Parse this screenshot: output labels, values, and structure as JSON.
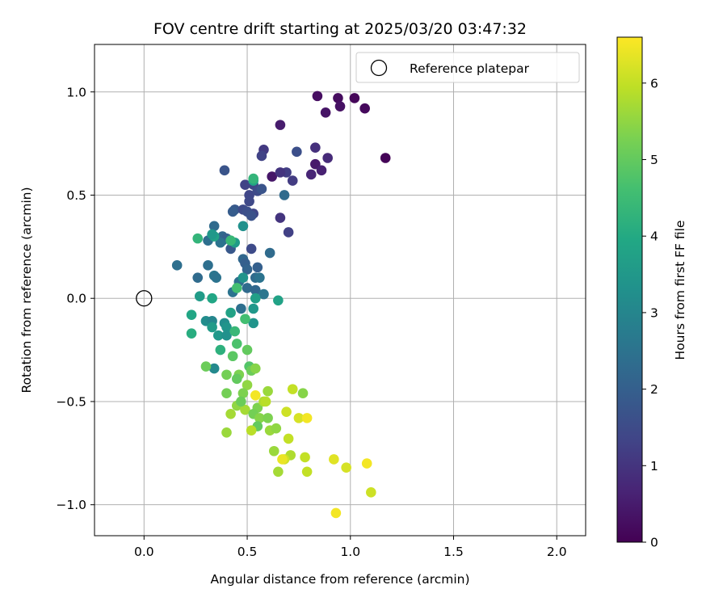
{
  "chart_data": {
    "type": "scatter",
    "title": "FOV centre drift starting at 2025/03/20 03:47:32",
    "xlabel": "Angular distance from reference (arcmin)",
    "ylabel": "Rotation from reference (arcmin)",
    "xlim": [
      -0.24,
      2.14
    ],
    "ylim": [
      -1.15,
      1.23
    ],
    "xticks": [
      0.0,
      0.5,
      1.0,
      1.5,
      2.0
    ],
    "xtick_labels": [
      "0.0",
      "0.5",
      "1.0",
      "1.5",
      "2.0"
    ],
    "yticks": [
      -1.0,
      -0.5,
      0.0,
      0.5,
      1.0
    ],
    "ytick_labels": [
      "−1.0",
      "−0.5",
      "0.0",
      "0.5",
      "1.0"
    ],
    "grid": true,
    "legend": {
      "placement": "top-right",
      "entries": [
        "Reference platepar"
      ]
    },
    "reference_point": {
      "x": 0.0,
      "y": 0.0,
      "label": "Reference platepar"
    },
    "colorbar": {
      "label": "Hours from first FF file",
      "colormap": "viridis",
      "range": [
        0,
        6.6
      ],
      "ticks": [
        0,
        1,
        2,
        3,
        4,
        5,
        6
      ],
      "tick_labels": [
        "0",
        "1",
        "2",
        "3",
        "4",
        "5",
        "6"
      ]
    },
    "points": [
      {
        "x": 1.17,
        "y": 0.68,
        "t": 0.05
      },
      {
        "x": 1.02,
        "y": 0.97,
        "t": 0.1
      },
      {
        "x": 1.07,
        "y": 0.92,
        "t": 0.15
      },
      {
        "x": 0.94,
        "y": 0.97,
        "t": 0.2
      },
      {
        "x": 0.84,
        "y": 0.98,
        "t": 0.25
      },
      {
        "x": 0.95,
        "y": 0.93,
        "t": 0.3
      },
      {
        "x": 0.88,
        "y": 0.9,
        "t": 0.35
      },
      {
        "x": 0.66,
        "y": 0.84,
        "t": 0.5
      },
      {
        "x": 0.83,
        "y": 0.65,
        "t": 0.45
      },
      {
        "x": 0.62,
        "y": 0.59,
        "t": 0.4
      },
      {
        "x": 0.86,
        "y": 0.62,
        "t": 0.6
      },
      {
        "x": 0.89,
        "y": 0.68,
        "t": 0.8
      },
      {
        "x": 0.83,
        "y": 0.73,
        "t": 0.9
      },
      {
        "x": 0.81,
        "y": 0.6,
        "t": 0.7
      },
      {
        "x": 0.58,
        "y": 0.72,
        "t": 1.1
      },
      {
        "x": 0.57,
        "y": 0.69,
        "t": 1.3
      },
      {
        "x": 0.69,
        "y": 0.61,
        "t": 1.2
      },
      {
        "x": 0.66,
        "y": 0.61,
        "t": 1.0
      },
      {
        "x": 0.72,
        "y": 0.57,
        "t": 1.15
      },
      {
        "x": 0.74,
        "y": 0.71,
        "t": 1.6
      },
      {
        "x": 0.66,
        "y": 0.39,
        "t": 1.0
      },
      {
        "x": 0.7,
        "y": 0.32,
        "t": 1.25
      },
      {
        "x": 0.49,
        "y": 0.55,
        "t": 1.3
      },
      {
        "x": 0.53,
        "y": 0.55,
        "t": 1.35
      },
      {
        "x": 0.51,
        "y": 0.5,
        "t": 1.4
      },
      {
        "x": 0.55,
        "y": 0.52,
        "t": 1.5
      },
      {
        "x": 0.57,
        "y": 0.53,
        "t": 1.7
      },
      {
        "x": 0.51,
        "y": 0.47,
        "t": 1.45
      },
      {
        "x": 0.39,
        "y": 0.62,
        "t": 1.7
      },
      {
        "x": 0.44,
        "y": 0.43,
        "t": 1.8
      },
      {
        "x": 0.43,
        "y": 0.42,
        "t": 1.9
      },
      {
        "x": 0.48,
        "y": 0.43,
        "t": 1.5
      },
      {
        "x": 0.53,
        "y": 0.41,
        "t": 1.4
      },
      {
        "x": 0.5,
        "y": 0.42,
        "t": 1.6
      },
      {
        "x": 0.52,
        "y": 0.4,
        "t": 1.65
      },
      {
        "x": 0.68,
        "y": 0.5,
        "t": 2.3
      },
      {
        "x": 0.52,
        "y": 0.24,
        "t": 1.5
      },
      {
        "x": 0.42,
        "y": 0.24,
        "t": 1.8
      },
      {
        "x": 0.34,
        "y": 0.35,
        "t": 2.3
      },
      {
        "x": 0.31,
        "y": 0.28,
        "t": 2.4
      },
      {
        "x": 0.38,
        "y": 0.28,
        "t": 2.1
      },
      {
        "x": 0.38,
        "y": 0.3,
        "t": 2.2
      },
      {
        "x": 0.4,
        "y": 0.29,
        "t": 2.0
      },
      {
        "x": 0.37,
        "y": 0.27,
        "t": 2.5
      },
      {
        "x": 0.61,
        "y": 0.22,
        "t": 2.3
      },
      {
        "x": 0.16,
        "y": 0.16,
        "t": 2.4
      },
      {
        "x": 0.26,
        "y": 0.1,
        "t": 2.3
      },
      {
        "x": 0.31,
        "y": 0.16,
        "t": 2.4
      },
      {
        "x": 0.34,
        "y": 0.11,
        "t": 2.6
      },
      {
        "x": 0.35,
        "y": 0.1,
        "t": 2.5
      },
      {
        "x": 0.48,
        "y": 0.19,
        "t": 2.2
      },
      {
        "x": 0.49,
        "y": 0.17,
        "t": 2.0
      },
      {
        "x": 0.5,
        "y": 0.14,
        "t": 2.1
      },
      {
        "x": 0.55,
        "y": 0.15,
        "t": 2.0
      },
      {
        "x": 0.54,
        "y": 0.1,
        "t": 2.3
      },
      {
        "x": 0.56,
        "y": 0.1,
        "t": 2.5
      },
      {
        "x": 0.46,
        "y": 0.08,
        "t": 2.4
      },
      {
        "x": 0.43,
        "y": 0.03,
        "t": 2.5
      },
      {
        "x": 0.5,
        "y": 0.05,
        "t": 2.3
      },
      {
        "x": 0.54,
        "y": 0.04,
        "t": 2.2
      },
      {
        "x": 0.58,
        "y": 0.02,
        "t": 2.6
      },
      {
        "x": 0.47,
        "y": -0.05,
        "t": 2.4
      },
      {
        "x": 0.48,
        "y": 0.1,
        "t": 3.4
      },
      {
        "x": 0.44,
        "y": 0.27,
        "t": 3.6
      },
      {
        "x": 0.34,
        "y": 0.3,
        "t": 3.8
      },
      {
        "x": 0.48,
        "y": 0.35,
        "t": 3.3
      },
      {
        "x": 0.53,
        "y": 0.57,
        "t": 3.9
      },
      {
        "x": 0.53,
        "y": 0.58,
        "t": 4.3
      },
      {
        "x": 0.33,
        "y": 0.31,
        "t": 3.5
      },
      {
        "x": 0.27,
        "y": 0.01,
        "t": 3.6
      },
      {
        "x": 0.33,
        "y": 0.0,
        "t": 3.9
      },
      {
        "x": 0.54,
        "y": 0.0,
        "t": 3.7
      },
      {
        "x": 0.53,
        "y": -0.05,
        "t": 3.5
      },
      {
        "x": 0.53,
        "y": -0.12,
        "t": 3.4
      },
      {
        "x": 0.65,
        "y": -0.01,
        "t": 3.8
      },
      {
        "x": 0.42,
        "y": -0.07,
        "t": 3.8
      },
      {
        "x": 0.39,
        "y": -0.12,
        "t": 3.2
      },
      {
        "x": 0.4,
        "y": -0.14,
        "t": 3.4
      },
      {
        "x": 0.3,
        "y": -0.11,
        "t": 3.2
      },
      {
        "x": 0.33,
        "y": -0.11,
        "t": 3.0
      },
      {
        "x": 0.33,
        "y": -0.14,
        "t": 3.6
      },
      {
        "x": 0.23,
        "y": -0.08,
        "t": 3.9
      },
      {
        "x": 0.23,
        "y": -0.17,
        "t": 4.1
      },
      {
        "x": 0.36,
        "y": -0.18,
        "t": 3.5
      },
      {
        "x": 0.4,
        "y": -0.18,
        "t": 3.3
      },
      {
        "x": 0.34,
        "y": -0.34,
        "t": 3.1
      },
      {
        "x": 0.26,
        "y": 0.29,
        "t": 4.3
      },
      {
        "x": 0.42,
        "y": 0.28,
        "t": 4.4
      },
      {
        "x": 0.45,
        "y": 0.05,
        "t": 4.6
      },
      {
        "x": 0.44,
        "y": -0.16,
        "t": 4.4
      },
      {
        "x": 0.37,
        "y": -0.25,
        "t": 4.2
      },
      {
        "x": 0.49,
        "y": -0.1,
        "t": 4.6
      },
      {
        "x": 0.45,
        "y": -0.22,
        "t": 4.7
      },
      {
        "x": 0.43,
        "y": -0.28,
        "t": 4.9
      },
      {
        "x": 0.5,
        "y": -0.25,
        "t": 5.0
      },
      {
        "x": 0.3,
        "y": -0.33,
        "t": 5.1
      },
      {
        "x": 0.4,
        "y": -0.37,
        "t": 5.2
      },
      {
        "x": 0.46,
        "y": -0.37,
        "t": 5.3
      },
      {
        "x": 0.45,
        "y": -0.39,
        "t": 5.0
      },
      {
        "x": 0.51,
        "y": -0.33,
        "t": 4.8
      },
      {
        "x": 0.52,
        "y": -0.35,
        "t": 5.1
      },
      {
        "x": 0.54,
        "y": -0.34,
        "t": 5.4
      },
      {
        "x": 0.5,
        "y": -0.42,
        "t": 5.5
      },
      {
        "x": 0.48,
        "y": -0.46,
        "t": 5.3
      },
      {
        "x": 0.4,
        "y": -0.46,
        "t": 5.2
      },
      {
        "x": 0.45,
        "y": -0.52,
        "t": 5.5
      },
      {
        "x": 0.49,
        "y": -0.54,
        "t": 5.7
      },
      {
        "x": 0.47,
        "y": -0.5,
        "t": 5.1
      },
      {
        "x": 0.55,
        "y": -0.53,
        "t": 5.3
      },
      {
        "x": 0.58,
        "y": -0.5,
        "t": 5.8
      },
      {
        "x": 0.59,
        "y": -0.5,
        "t": 5.9
      },
      {
        "x": 0.6,
        "y": -0.45,
        "t": 5.6
      },
      {
        "x": 0.42,
        "y": -0.56,
        "t": 5.7
      },
      {
        "x": 0.53,
        "y": -0.56,
        "t": 5.2
      },
      {
        "x": 0.56,
        "y": -0.58,
        "t": 5.4
      },
      {
        "x": 0.55,
        "y": -0.62,
        "t": 5.0
      },
      {
        "x": 0.6,
        "y": -0.58,
        "t": 5.3
      },
      {
        "x": 0.52,
        "y": -0.64,
        "t": 5.9
      },
      {
        "x": 0.61,
        "y": -0.64,
        "t": 5.6
      },
      {
        "x": 0.64,
        "y": -0.63,
        "t": 5.5
      },
      {
        "x": 0.4,
        "y": -0.65,
        "t": 5.6
      },
      {
        "x": 0.77,
        "y": -0.46,
        "t": 5.4
      },
      {
        "x": 0.72,
        "y": -0.44,
        "t": 6.0
      },
      {
        "x": 0.69,
        "y": -0.55,
        "t": 6.1
      },
      {
        "x": 0.75,
        "y": -0.58,
        "t": 6.2
      },
      {
        "x": 0.79,
        "y": -0.58,
        "t": 6.5
      },
      {
        "x": 0.7,
        "y": -0.68,
        "t": 6.0
      },
      {
        "x": 0.63,
        "y": -0.74,
        "t": 5.6
      },
      {
        "x": 0.71,
        "y": -0.76,
        "t": 5.8
      },
      {
        "x": 0.68,
        "y": -0.78,
        "t": 6.1
      },
      {
        "x": 0.67,
        "y": -0.78,
        "t": 6.4
      },
      {
        "x": 0.78,
        "y": -0.77,
        "t": 6.0
      },
      {
        "x": 0.65,
        "y": -0.84,
        "t": 5.7
      },
      {
        "x": 0.79,
        "y": -0.84,
        "t": 6.0
      },
      {
        "x": 0.54,
        "y": -0.47,
        "t": 6.5
      },
      {
        "x": 0.92,
        "y": -0.78,
        "t": 6.3
      },
      {
        "x": 0.98,
        "y": -0.82,
        "t": 6.2
      },
      {
        "x": 1.08,
        "y": -0.8,
        "t": 6.5
      },
      {
        "x": 1.1,
        "y": -0.94,
        "t": 6.1
      },
      {
        "x": 0.93,
        "y": -1.04,
        "t": 6.5
      }
    ]
  }
}
